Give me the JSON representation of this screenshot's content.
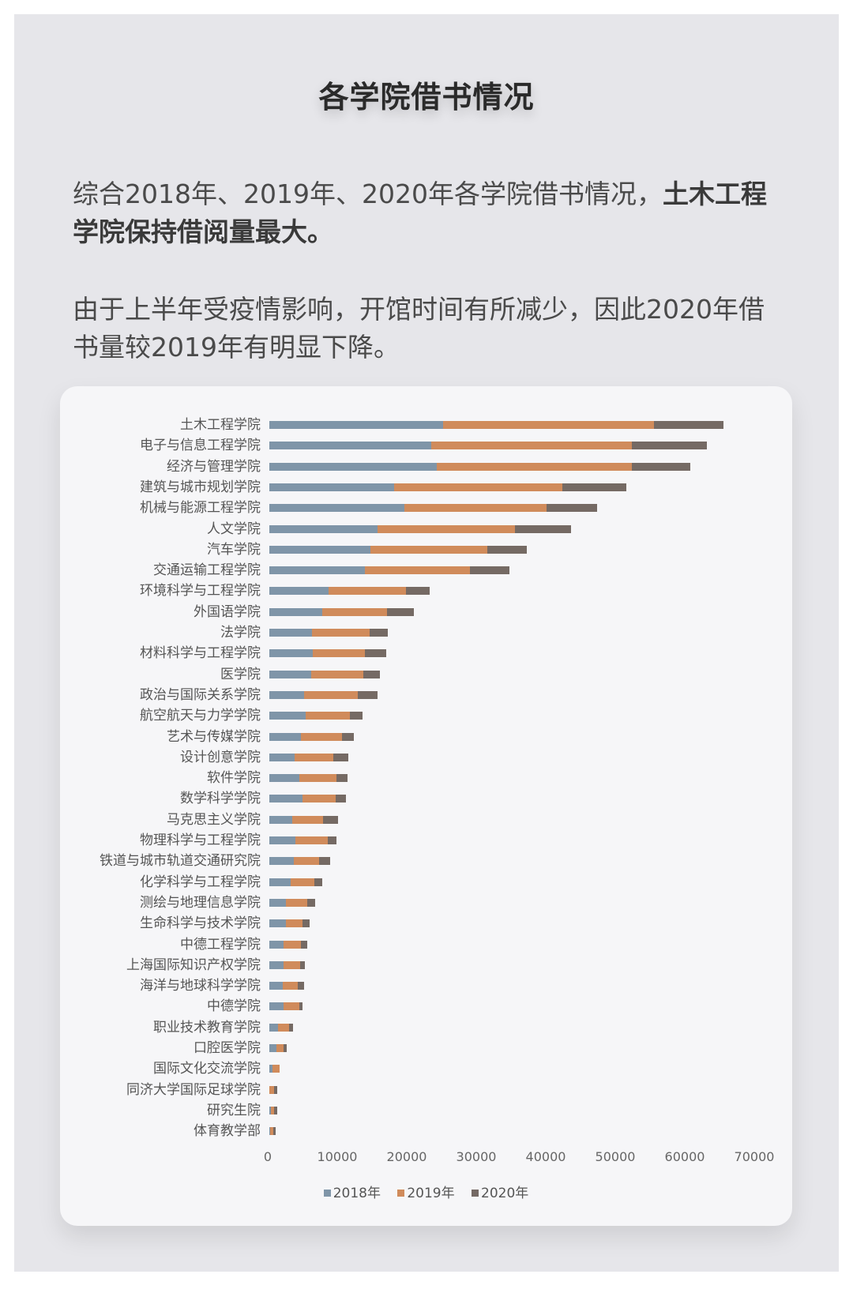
{
  "page": {
    "title": "各学院借书情况",
    "paragraph1_normal": "综合2018年、2019年、2020年各学院借书情况，",
    "paragraph1_bold": "土木工程学院保持借阅量最大。",
    "paragraph2": "由于上半年受疫情影响，开馆时间有所减少，因此2020年借书量较2019年有明显下降。"
  },
  "colors": {
    "s2018": "#7f95a8",
    "s2019": "#d08b5b",
    "s2020": "#756a64"
  },
  "chart_data": {
    "type": "bar",
    "orientation": "horizontal",
    "stacked": true,
    "title": "",
    "xlabel": "",
    "ylabel": "",
    "xlim": [
      0,
      70000
    ],
    "xticks": [
      0,
      10000,
      20000,
      30000,
      40000,
      50000,
      60000,
      70000
    ],
    "grid": false,
    "legend_position": "bottom",
    "categories": [
      "土木工程学院",
      "电子与信息工程学院",
      "经济与管理学院",
      "建筑与城市规划学院",
      "机械与能源工程学院",
      "人文学院",
      "汽车学院",
      "交通运输工程学院",
      "环境科学与工程学院",
      "外国语学院",
      "法学院",
      "材料科学与工程学院",
      "医学院",
      "政治与国际关系学院",
      "航空航天与力学学院",
      "艺术与传媒学院",
      "设计创意学院",
      "软件学院",
      "数学科学学院",
      "马克思主义学院",
      "物理科学与工程学院",
      "铁道与城市轨道交通研究院",
      "化学科学与工程学院",
      "测绘与地理信息学院",
      "生命科学与技术学院",
      "中德工程学院",
      "上海国际知识产权学院",
      "海洋与地球科学学院",
      "中德学院",
      "职业技术教育学院",
      "口腔医学院",
      "国际文化交流学院",
      "同济大学国际足球学院",
      "研究生院",
      "体育教学部"
    ],
    "series": [
      {
        "name": "2018年",
        "values": [
          25000,
          23300,
          24100,
          17900,
          19400,
          15600,
          14500,
          13700,
          8500,
          7600,
          6100,
          6300,
          6000,
          5000,
          5200,
          4500,
          3600,
          4300,
          4800,
          3300,
          3700,
          3500,
          3100,
          2400,
          2400,
          2000,
          2000,
          1900,
          2000,
          1200,
          1000,
          500,
          0,
          200,
          100
        ]
      },
      {
        "name": "2019年",
        "values": [
          30300,
          28900,
          28100,
          24300,
          20500,
          19700,
          16900,
          15200,
          11200,
          9300,
          8300,
          7500,
          7500,
          7700,
          6400,
          5900,
          5600,
          5400,
          4700,
          4400,
          4700,
          3700,
          3400,
          3100,
          2400,
          2600,
          2400,
          2200,
          2300,
          1600,
          1000,
          1000,
          700,
          500,
          500
        ]
      },
      {
        "name": "2020年",
        "values": [
          10000,
          10700,
          8400,
          9200,
          7300,
          8100,
          5700,
          5600,
          3400,
          3900,
          2600,
          3000,
          2400,
          2900,
          1800,
          1800,
          2200,
          1600,
          1500,
          2200,
          1300,
          1500,
          1100,
          1100,
          1000,
          800,
          700,
          900,
          500,
          600,
          500,
          0,
          400,
          400,
          300
        ]
      }
    ],
    "tick_labels": [
      "0",
      "10000",
      "20000",
      "30000",
      "40000",
      "50000",
      "60000",
      "70000"
    ],
    "legend": [
      "2018年",
      "2019年",
      "2020年"
    ]
  }
}
